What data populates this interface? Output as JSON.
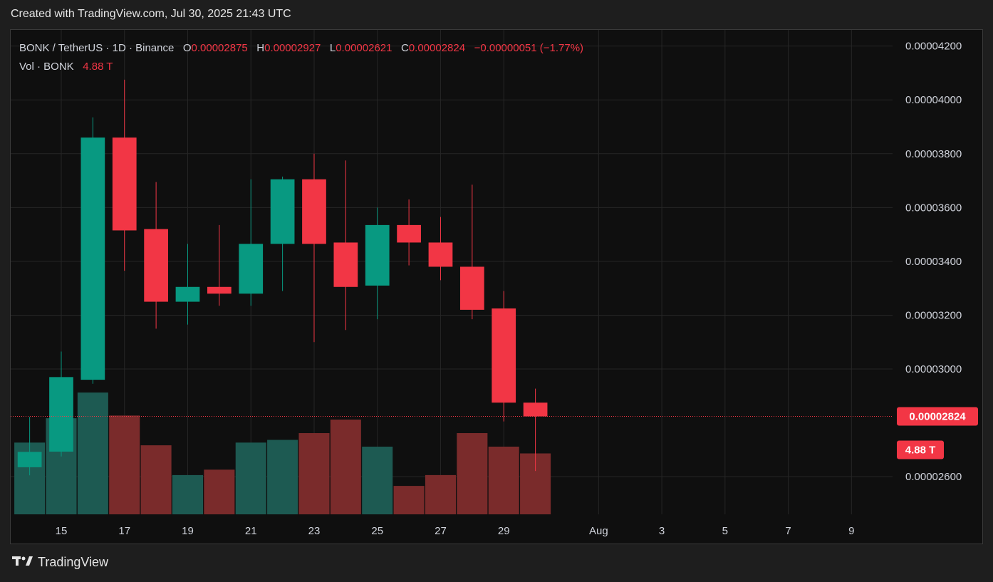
{
  "header": {
    "title": "Created with TradingView.com, Jul 30, 2025 21:43 UTC"
  },
  "legend": {
    "symbol": "BONK / TetherUS · 1D · Binance",
    "o_label": "O",
    "o_value": "0.00002875",
    "h_label": "H",
    "h_value": "0.00002927",
    "l_label": "L",
    "l_value": "0.00002621",
    "c_label": "C",
    "c_value": "0.00002824",
    "change": "−0.00000051 (−1.77%)",
    "vol_label": "Vol · BONK",
    "vol_value": "4.88 T"
  },
  "brand": {
    "name": "TradingView"
  },
  "colors": {
    "up": "#089981",
    "down": "#f23645",
    "vol_up": "#1d5a52",
    "vol_down": "#7a2b2b",
    "grid": "#262626",
    "badge": "#f23645"
  },
  "chart_data": {
    "type": "candlestick",
    "title": "BONK / TetherUS · 1D · Binance",
    "y_ticks": [
      "0.00004200",
      "0.00004000",
      "0.00003800",
      "0.00003600",
      "0.00003400",
      "0.00003200",
      "0.00003000",
      "0.00002600"
    ],
    "y_tick_values": [
      4.2e-05,
      4e-05,
      3.8e-05,
      3.6e-05,
      3.4e-05,
      3.2e-05,
      3e-05,
      2.6e-05
    ],
    "x_ticks": [
      {
        "label": "15",
        "day": 15
      },
      {
        "label": "17",
        "day": 17
      },
      {
        "label": "19",
        "day": 19
      },
      {
        "label": "21",
        "day": 21
      },
      {
        "label": "23",
        "day": 23
      },
      {
        "label": "25",
        "day": 25
      },
      {
        "label": "27",
        "day": 27
      },
      {
        "label": "29",
        "day": 29
      },
      {
        "label": "Aug",
        "day": 32
      },
      {
        "label": "3",
        "day": 34
      },
      {
        "label": "5",
        "day": 36
      },
      {
        "label": "7",
        "day": 38
      },
      {
        "label": "9",
        "day": 40
      }
    ],
    "ylim": [
      2.46e-05,
      4.26e-05
    ],
    "xlim": [
      13.4,
      41.3
    ],
    "last_price": 2.824e-05,
    "last_price_label": "0.00002824",
    "volume_label": "4.88 T",
    "candles": [
      {
        "day": 14,
        "o": 2.635e-05,
        "h": 2.822e-05,
        "l": 2.605e-05,
        "c": 2.692e-05,
        "v": 0.53
      },
      {
        "day": 15,
        "o": 2.693e-05,
        "h": 3.065e-05,
        "l": 2.675e-05,
        "c": 2.97e-05,
        "v": 0.71
      },
      {
        "day": 16,
        "o": 2.96e-05,
        "h": 3.935e-05,
        "l": 2.945e-05,
        "c": 3.86e-05,
        "v": 0.9
      },
      {
        "day": 17,
        "o": 3.86e-05,
        "h": 4.075e-05,
        "l": 3.365e-05,
        "c": 3.515e-05,
        "v": 0.73
      },
      {
        "day": 18,
        "o": 3.52e-05,
        "h": 3.695e-05,
        "l": 3.15e-05,
        "c": 3.25e-05,
        "v": 0.51
      },
      {
        "day": 19,
        "o": 3.25e-05,
        "h": 3.465e-05,
        "l": 3.165e-05,
        "c": 3.305e-05,
        "v": 0.29
      },
      {
        "day": 20,
        "o": 3.305e-05,
        "h": 3.535e-05,
        "l": 3.235e-05,
        "c": 3.28e-05,
        "v": 0.33
      },
      {
        "day": 21,
        "o": 3.28e-05,
        "h": 3.705e-05,
        "l": 3.235e-05,
        "c": 3.465e-05,
        "v": 0.53
      },
      {
        "day": 22,
        "o": 3.465e-05,
        "h": 3.715e-05,
        "l": 3.29e-05,
        "c": 3.705e-05,
        "v": 0.55
      },
      {
        "day": 23,
        "o": 3.705e-05,
        "h": 3.8e-05,
        "l": 3.1e-05,
        "c": 3.465e-05,
        "v": 0.6
      },
      {
        "day": 24,
        "o": 3.47e-05,
        "h": 3.775e-05,
        "l": 3.145e-05,
        "c": 3.305e-05,
        "v": 0.7
      },
      {
        "day": 25,
        "o": 3.31e-05,
        "h": 3.6e-05,
        "l": 3.185e-05,
        "c": 3.535e-05,
        "v": 0.5
      },
      {
        "day": 26,
        "o": 3.535e-05,
        "h": 3.63e-05,
        "l": 3.385e-05,
        "c": 3.47e-05,
        "v": 0.21
      },
      {
        "day": 27,
        "o": 3.47e-05,
        "h": 3.565e-05,
        "l": 3.33e-05,
        "c": 3.38e-05,
        "v": 0.29
      },
      {
        "day": 28,
        "o": 3.38e-05,
        "h": 3.685e-05,
        "l": 3.185e-05,
        "c": 3.22e-05,
        "v": 0.6
      },
      {
        "day": 29,
        "o": 3.225e-05,
        "h": 3.29e-05,
        "l": 2.805e-05,
        "c": 2.875e-05,
        "v": 0.5
      },
      {
        "day": 30,
        "o": 2.875e-05,
        "h": 2.927e-05,
        "l": 2.621e-05,
        "c": 2.824e-05,
        "v": 0.45
      }
    ]
  }
}
